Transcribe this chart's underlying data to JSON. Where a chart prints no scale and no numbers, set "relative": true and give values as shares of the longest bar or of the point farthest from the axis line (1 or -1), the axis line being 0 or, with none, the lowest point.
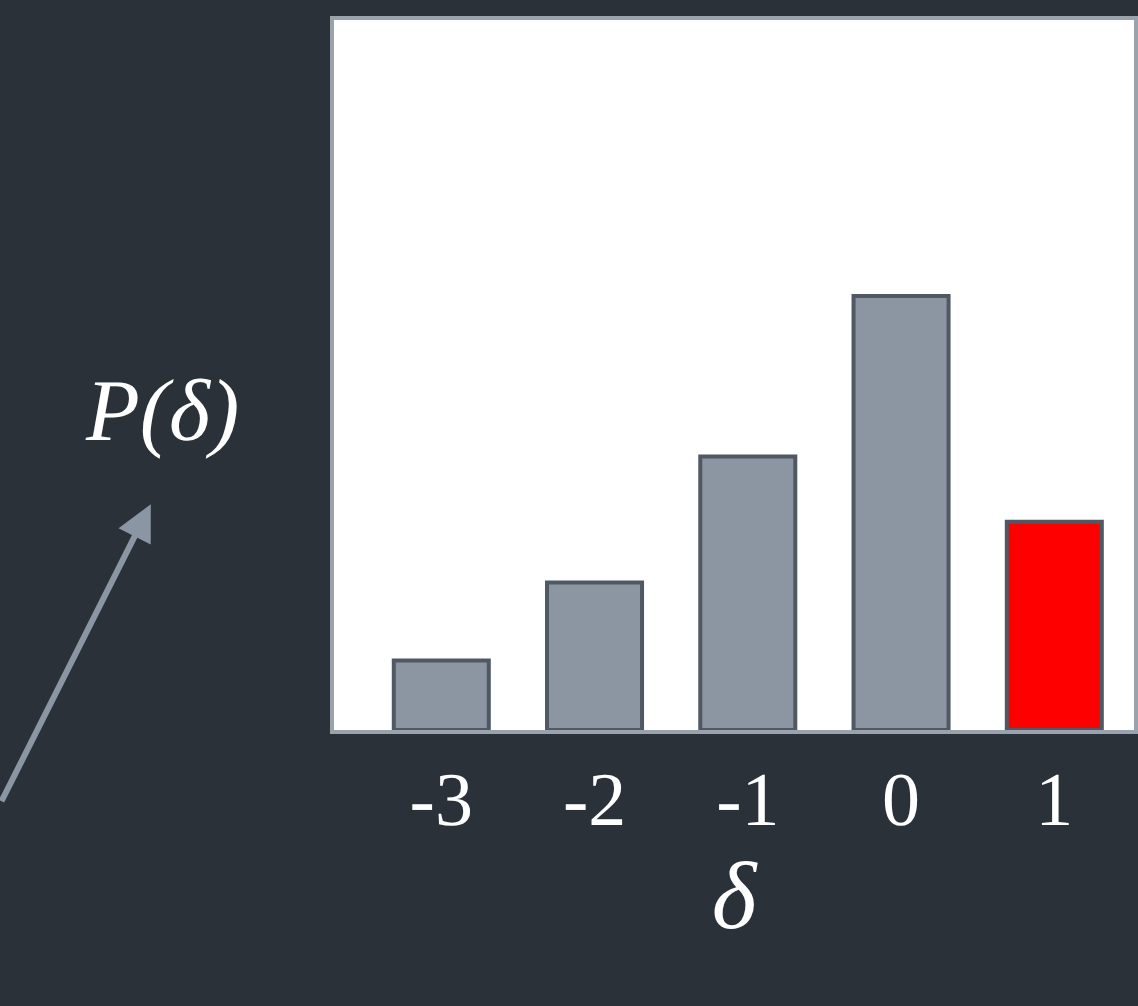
{
  "chart_data": {
    "type": "bar",
    "relative": true,
    "categories": [
      "-3",
      "-2",
      "-1",
      "0",
      "1"
    ],
    "values": [
      0.16,
      0.34,
      0.63,
      1,
      0.48
    ],
    "colors": [
      "#8c96a2",
      "#8c96a2",
      "#8c96a2",
      "#8c96a2",
      "#ff0000"
    ],
    "xlabel": "δ",
    "ylabel": "P(δ)",
    "legend": false
  }
}
